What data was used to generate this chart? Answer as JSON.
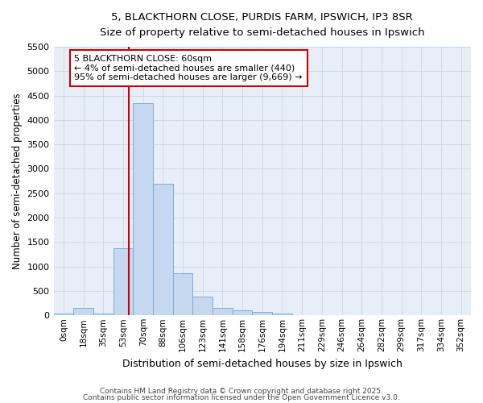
{
  "title1": "5, BLACKTHORN CLOSE, PURDIS FARM, IPSWICH, IP3 8SR",
  "title2": "Size of property relative to semi-detached houses in Ipswich",
  "xlabel": "Distribution of semi-detached houses by size in Ipswich",
  "ylabel": "Number of semi-detached properties",
  "bin_labels": [
    "0sqm",
    "18sqm",
    "35sqm",
    "53sqm",
    "70sqm",
    "88sqm",
    "106sqm",
    "123sqm",
    "141sqm",
    "158sqm",
    "176sqm",
    "194sqm",
    "211sqm",
    "229sqm",
    "246sqm",
    "264sqm",
    "282sqm",
    "299sqm",
    "317sqm",
    "334sqm",
    "352sqm"
  ],
  "bar_heights": [
    30,
    150,
    30,
    1380,
    4350,
    2700,
    870,
    390,
    150,
    100,
    65,
    30,
    5,
    3,
    3,
    0,
    0,
    0,
    0,
    0,
    0
  ],
  "bar_color": "#C5D8F0",
  "bar_edge_color": "#7BADD6",
  "plot_bg_color": "#E8EEF8",
  "fig_bg_color": "#FFFFFF",
  "grid_color": "#D0D8E8",
  "red_line_x": 3.8,
  "annotation_text": "5 BLACKTHORN CLOSE: 60sqm\n← 4% of semi-detached houses are smaller (440)\n95% of semi-detached houses are larger (9,669) →",
  "annotation_box_color": "#FFFFFF",
  "annotation_box_edge": "#CC0000",
  "red_line_color": "#CC0000",
  "ylim": [
    0,
    5500
  ],
  "yticks": [
    0,
    500,
    1000,
    1500,
    2000,
    2500,
    3000,
    3500,
    4000,
    4500,
    5000,
    5500
  ],
  "footer1": "Contains HM Land Registry data © Crown copyright and database right 2025.",
  "footer2": "Contains public sector information licensed under the Open Government Licence v3.0."
}
